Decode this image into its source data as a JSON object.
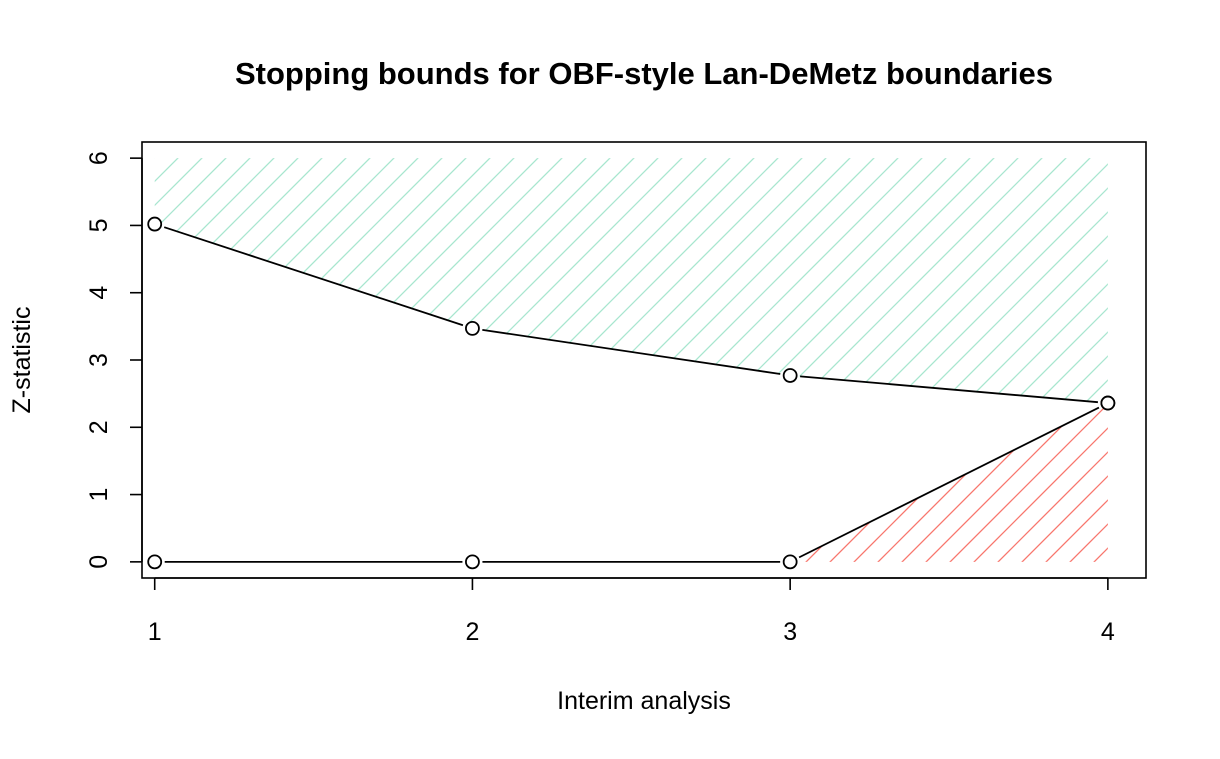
{
  "chart_data": {
    "type": "line",
    "title": "Stopping bounds for OBF-style Lan-DeMetz boundaries",
    "xlabel": "Interim analysis",
    "ylabel": "Z-statistic",
    "x": [
      1,
      2,
      3,
      4
    ],
    "xticks": [
      "1",
      "2",
      "3",
      "4"
    ],
    "yticks": [
      "0",
      "1",
      "2",
      "3",
      "4",
      "5",
      "6"
    ],
    "xlim": [
      0.96,
      4.12
    ],
    "ylim": [
      -0.24,
      6.24
    ],
    "grid": false,
    "legend": "none",
    "series": [
      {
        "values": [
          5.02,
          3.47,
          2.77,
          2.36
        ],
        "color": "#000000",
        "fill_color": "#a8e6cf",
        "fill_to": 6
      },
      {
        "values": [
          0.0,
          0.0,
          0.0,
          2.36
        ],
        "color": "#000000",
        "fill_color": "#f8766d",
        "fill_to": 0
      }
    ]
  }
}
